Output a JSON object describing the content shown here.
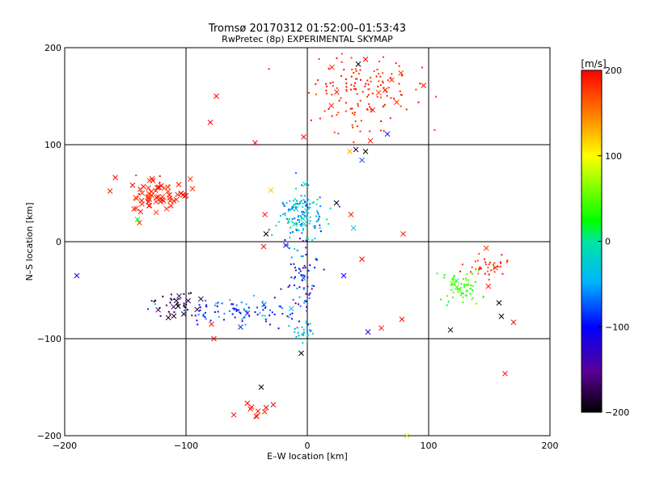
{
  "chart_data": {
    "type": "scatter",
    "title": "Tromsø 20170312 01:52:00–01:53:43",
    "subtitle": "RwPretec (8p) EXPERIMENTAL SKYMAP",
    "xlabel": "E–W location [km]",
    "ylabel": "N–S location [km]",
    "xlim": [
      -200,
      200
    ],
    "ylim": [
      -200,
      200
    ],
    "xticks": [
      -200,
      -100,
      0,
      100,
      200
    ],
    "yticks": [
      -200,
      -100,
      0,
      100,
      200
    ],
    "grid": true,
    "colorbar": {
      "label": "[m/s]",
      "range": [
        -200,
        200
      ],
      "ticks": [
        200,
        100,
        0,
        -100,
        -200
      ]
    },
    "clusters": [
      {
        "name": "north-cluster",
        "cx": 45,
        "cy": 155,
        "sx": 22,
        "sy": 20,
        "n": 150,
        "vmin": 170,
        "vmax": 200,
        "cross_frac": 0.04
      },
      {
        "name": "west-arc",
        "cx": -125,
        "cy": 50,
        "sx": 13,
        "sy": 9,
        "n": 70,
        "vmin": 175,
        "vmax": 200,
        "cross_frac": 0.9
      },
      {
        "name": "center-north",
        "cx": -5,
        "cy": 25,
        "sx": 10,
        "sy": 14,
        "n": 140,
        "vmin": -80,
        "vmax": 10,
        "cross_frac": 0.05
      },
      {
        "name": "center-south",
        "cx": -5,
        "cy": -40,
        "sx": 8,
        "sy": 25,
        "n": 70,
        "vmin": -160,
        "vmax": -50,
        "cross_frac": 0.08
      },
      {
        "name": "southwest-band",
        "cx": -60,
        "cy": -72,
        "sx": 25,
        "sy": 7,
        "n": 90,
        "vmin": -130,
        "vmax": -30,
        "cross_frac": 0.05
      },
      {
        "name": "southwest-knot",
        "cx": -110,
        "cy": -65,
        "sx": 10,
        "sy": 6,
        "n": 40,
        "vmin": -200,
        "vmax": -150,
        "cross_frac": 0.3
      },
      {
        "name": "bottom-center",
        "cx": -5,
        "cy": -95,
        "sx": 5,
        "sy": 6,
        "n": 28,
        "vmin": -60,
        "vmax": -10,
        "cross_frac": 0.05
      },
      {
        "name": "east-cluster",
        "cx": 128,
        "cy": -48,
        "sx": 8,
        "sy": 9,
        "n": 60,
        "vmin": 20,
        "vmax": 60,
        "cross_frac": 0.05
      },
      {
        "name": "east-arc",
        "cx": 147,
        "cy": -25,
        "sx": 8,
        "sy": 7,
        "n": 40,
        "vmin": 160,
        "vmax": 200,
        "cross_frac": 0.1
      },
      {
        "name": "south-cluster",
        "cx": -45,
        "cy": -175,
        "sx": 7,
        "sy": 7,
        "n": 9,
        "vmin": 180,
        "vmax": 200,
        "cross_frac": 1.0
      }
    ],
    "scattered_crosses": [
      {
        "x": -190,
        "y": -35,
        "v": -110
      },
      {
        "x": -75,
        "y": 150,
        "v": 200
      },
      {
        "x": -80,
        "y": 123,
        "v": 200
      },
      {
        "x": -43,
        "y": 102,
        "v": 200
      },
      {
        "x": -3,
        "y": 108,
        "v": 200
      },
      {
        "x": 35,
        "y": 93,
        "v": 130
      },
      {
        "x": 40,
        "y": 95,
        "v": -180
      },
      {
        "x": 45,
        "y": 84,
        "v": -80
      },
      {
        "x": 48,
        "y": 93,
        "v": -200
      },
      {
        "x": 52,
        "y": 104,
        "v": 200
      },
      {
        "x": 66,
        "y": 111,
        "v": -100
      },
      {
        "x": 42,
        "y": 183,
        "v": -200
      },
      {
        "x": 48,
        "y": 188,
        "v": 200
      },
      {
        "x": -140,
        "y": 23,
        "v": 20
      },
      {
        "x": -35,
        "y": 28,
        "v": 190
      },
      {
        "x": -34,
        "y": 8,
        "v": -200
      },
      {
        "x": -30,
        "y": 53,
        "v": 120
      },
      {
        "x": 24,
        "y": 40,
        "v": -200
      },
      {
        "x": 36,
        "y": 28,
        "v": 190
      },
      {
        "x": 38,
        "y": 14,
        "v": -40
      },
      {
        "x": 79,
        "y": 8,
        "v": 190
      },
      {
        "x": -36,
        "y": -5,
        "v": 200
      },
      {
        "x": 45,
        "y": -18,
        "v": 200
      },
      {
        "x": 30,
        "y": -35,
        "v": -100
      },
      {
        "x": -79,
        "y": -85,
        "v": 190
      },
      {
        "x": -77,
        "y": -100,
        "v": 200
      },
      {
        "x": -55,
        "y": -88,
        "v": -90
      },
      {
        "x": -5,
        "y": -115,
        "v": -200
      },
      {
        "x": 50,
        "y": -93,
        "v": -110
      },
      {
        "x": 61,
        "y": -89,
        "v": 200
      },
      {
        "x": 78,
        "y": -80,
        "v": 200
      },
      {
        "x": 118,
        "y": -91,
        "v": -200
      },
      {
        "x": 158,
        "y": -63,
        "v": -200
      },
      {
        "x": 160,
        "y": -77,
        "v": -200
      },
      {
        "x": 170,
        "y": -83,
        "v": 200
      },
      {
        "x": 163,
        "y": -136,
        "v": 200
      },
      {
        "x": -38,
        "y": -150,
        "v": -200
      },
      {
        "x": -28,
        "y": -168,
        "v": 200
      },
      {
        "x": 82,
        "y": -200,
        "v": 80
      }
    ]
  }
}
